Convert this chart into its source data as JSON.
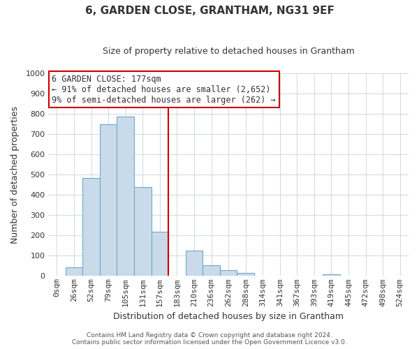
{
  "title": "6, GARDEN CLOSE, GRANTHAM, NG31 9EF",
  "subtitle": "Size of property relative to detached houses in Grantham",
  "xlabel": "Distribution of detached houses by size in Grantham",
  "ylabel": "Number of detached properties",
  "bar_labels": [
    "0sqm",
    "26sqm",
    "52sqm",
    "79sqm",
    "105sqm",
    "131sqm",
    "157sqm",
    "183sqm",
    "210sqm",
    "236sqm",
    "262sqm",
    "288sqm",
    "314sqm",
    "341sqm",
    "367sqm",
    "393sqm",
    "419sqm",
    "445sqm",
    "472sqm",
    "498sqm",
    "524sqm"
  ],
  "bar_values": [
    0,
    44,
    484,
    748,
    787,
    438,
    218,
    0,
    125,
    53,
    28,
    14,
    0,
    0,
    0,
    0,
    8,
    0,
    0,
    0,
    0
  ],
  "bar_color": "#c9daea",
  "bar_edgecolor": "#6fa8c8",
  "vline_color": "#cc0000",
  "vline_index": 7,
  "ylim": [
    0,
    1000
  ],
  "yticks": [
    0,
    100,
    200,
    300,
    400,
    500,
    600,
    700,
    800,
    900,
    1000
  ],
  "annotation_title": "6 GARDEN CLOSE: 177sqm",
  "annotation_line1": "← 91% of detached houses are smaller (2,652)",
  "annotation_line2": "9% of semi-detached houses are larger (262) →",
  "annotation_box_color": "#ffffff",
  "annotation_box_edgecolor": "#cc0000",
  "footer1": "Contains HM Land Registry data © Crown copyright and database right 2024.",
  "footer2": "Contains public sector information licensed under the Open Government Licence v3.0.",
  "background_color": "#ffffff",
  "grid_color": "#d0dce8",
  "title_fontsize": 11,
  "subtitle_fontsize": 9,
  "xlabel_fontsize": 9,
  "ylabel_fontsize": 9,
  "tick_fontsize": 8,
  "footer_fontsize": 6.5
}
